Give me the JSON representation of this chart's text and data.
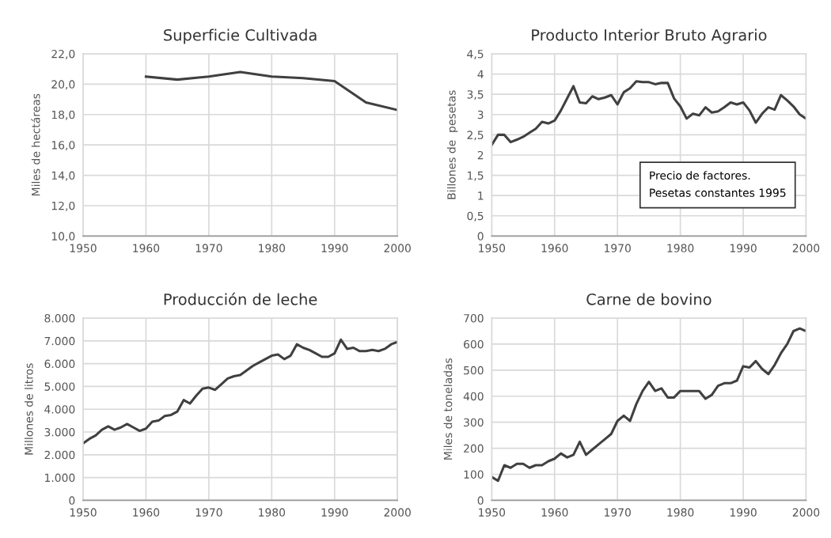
{
  "chart_data": [
    {
      "type": "line",
      "title": "Superficie Cultivada",
      "ylabel": "Miles de hectáreas",
      "x": [
        1960,
        1965,
        1970,
        1975,
        1980,
        1985,
        1990,
        1995,
        2000
      ],
      "series": [
        {
          "color": "#404040",
          "values": [
            20.5,
            20.3,
            20.5,
            20.8,
            20.5,
            20.4,
            20.2,
            18.8,
            18.3
          ]
        }
      ],
      "xlim": [
        1950,
        2000
      ],
      "xticks": [
        1950,
        1960,
        1970,
        1980,
        1990,
        2000
      ],
      "ylim": [
        10,
        22
      ],
      "yticks": [
        {
          "value": 10,
          "label": "10,0"
        },
        {
          "value": 12,
          "label": "12,0"
        },
        {
          "value": 14,
          "label": "14,0"
        },
        {
          "value": 16,
          "label": "16,0"
        },
        {
          "value": 18,
          "label": "18,0"
        },
        {
          "value": 20,
          "label": "20,0"
        },
        {
          "value": 22,
          "label": "22,0"
        }
      ],
      "grid": true
    },
    {
      "type": "line",
      "title": "Producto Interior Bruto Agrario",
      "ylabel": "Billones de  pesetas",
      "annotations": [
        "Precio de factores.\nPesetas constantes 1995"
      ],
      "x": [
        1950,
        1951,
        1952,
        1953,
        1954,
        1955,
        1956,
        1957,
        1958,
        1959,
        1960,
        1961,
        1962,
        1963,
        1964,
        1965,
        1966,
        1967,
        1968,
        1969,
        1970,
        1971,
        1972,
        1973,
        1974,
        1975,
        1976,
        1977,
        1978,
        1979,
        1980,
        1981,
        1982,
        1983,
        1984,
        1985,
        1986,
        1987,
        1988,
        1989,
        1990,
        1991,
        1992,
        1993,
        1994,
        1995,
        1996,
        1997,
        1998,
        1999,
        2000
      ],
      "series": [
        {
          "color": "#404040",
          "values": [
            2.25,
            2.5,
            2.5,
            2.32,
            2.38,
            2.45,
            2.55,
            2.65,
            2.82,
            2.78,
            2.85,
            3.1,
            3.4,
            3.7,
            3.3,
            3.28,
            3.45,
            3.38,
            3.42,
            3.48,
            3.25,
            3.55,
            3.65,
            3.82,
            3.8,
            3.8,
            3.75,
            3.78,
            3.78,
            3.4,
            3.2,
            2.9,
            3.02,
            2.98,
            3.18,
            3.05,
            3.08,
            3.18,
            3.3,
            3.25,
            3.3,
            3.1,
            2.8,
            3.02,
            3.18,
            3.12,
            3.48,
            3.35,
            3.2,
            3.0,
            2.9
          ]
        }
      ],
      "xlim": [
        1950,
        2000
      ],
      "xticks": [
        1950,
        1960,
        1970,
        1980,
        1990,
        2000
      ],
      "ylim": [
        0,
        4.5
      ],
      "yticks": [
        0,
        {
          "value": 0.5,
          "label": "0,5"
        },
        1,
        {
          "value": 1.5,
          "label": "1,5"
        },
        2,
        {
          "value": 2.5,
          "label": "2,5"
        },
        3,
        {
          "value": 3.5,
          "label": "3,5"
        },
        4,
        {
          "value": 4.5,
          "label": "4,5"
        }
      ],
      "grid": true
    },
    {
      "type": "line",
      "title": "Producción de leche",
      "ylabel": "Millones de litros",
      "x": [
        1950,
        1951,
        1952,
        1953,
        1954,
        1955,
        1956,
        1957,
        1958,
        1959,
        1960,
        1961,
        1962,
        1963,
        1964,
        1965,
        1966,
        1967,
        1968,
        1969,
        1970,
        1971,
        1972,
        1973,
        1974,
        1975,
        1976,
        1977,
        1978,
        1979,
        1980,
        1981,
        1982,
        1983,
        1984,
        1985,
        1986,
        1987,
        1988,
        1989,
        1990,
        1991,
        1992,
        1993,
        1994,
        1995,
        1996,
        1997,
        1998,
        1999,
        2000
      ],
      "series": [
        {
          "color": "#404040",
          "values": [
            2500,
            2700,
            2850,
            3100,
            3250,
            3100,
            3200,
            3350,
            3200,
            3050,
            3150,
            3450,
            3500,
            3700,
            3750,
            3900,
            4400,
            4250,
            4600,
            4900,
            4950,
            4850,
            5100,
            5350,
            5450,
            5500,
            5700,
            5900,
            6050,
            6200,
            6350,
            6400,
            6200,
            6350,
            6850,
            6700,
            6600,
            6450,
            6300,
            6300,
            6450,
            7050,
            6650,
            6700,
            6550,
            6550,
            6600,
            6550,
            6650,
            6850,
            6950
          ]
        }
      ],
      "xlim": [
        1950,
        2000
      ],
      "xticks": [
        1950,
        1960,
        1970,
        1980,
        1990,
        2000
      ],
      "ylim": [
        0,
        8000
      ],
      "yticks": [
        0,
        {
          "value": 1000,
          "label": "1.000"
        },
        {
          "value": 2000,
          "label": "2.000"
        },
        {
          "value": 3000,
          "label": "3.000"
        },
        {
          "value": 4000,
          "label": "4.000"
        },
        {
          "value": 5000,
          "label": "5.000"
        },
        {
          "value": 6000,
          "label": "6.000"
        },
        {
          "value": 7000,
          "label": "7.000"
        },
        {
          "value": 8000,
          "label": "8.000"
        }
      ],
      "grid": true
    },
    {
      "type": "line",
      "title": "Carne de bovino",
      "ylabel": "Miles de toneladas",
      "x": [
        1950,
        1951,
        1952,
        1953,
        1954,
        1955,
        1956,
        1957,
        1958,
        1959,
        1960,
        1961,
        1962,
        1963,
        1964,
        1965,
        1966,
        1967,
        1968,
        1969,
        1970,
        1971,
        1972,
        1973,
        1974,
        1975,
        1976,
        1977,
        1978,
        1979,
        1980,
        1981,
        1982,
        1983,
        1984,
        1985,
        1986,
        1987,
        1988,
        1989,
        1990,
        1991,
        1992,
        1993,
        1994,
        1995,
        1996,
        1997,
        1998,
        1999,
        2000
      ],
      "series": [
        {
          "color": "#404040",
          "values": [
            90,
            75,
            135,
            125,
            140,
            140,
            125,
            135,
            135,
            150,
            160,
            180,
            165,
            175,
            225,
            175,
            195,
            215,
            235,
            255,
            305,
            325,
            305,
            370,
            420,
            455,
            420,
            430,
            395,
            395,
            420,
            420,
            420,
            420,
            390,
            405,
            440,
            450,
            450,
            460,
            515,
            510,
            535,
            505,
            485,
            520,
            565,
            600,
            650,
            660,
            650
          ]
        }
      ],
      "xlim": [
        1950,
        2000
      ],
      "xticks": [
        1950,
        1960,
        1970,
        1980,
        1990,
        2000
      ],
      "ylim": [
        0,
        700
      ],
      "yticks": [
        0,
        100,
        200,
        300,
        400,
        500,
        600,
        700
      ],
      "grid": true
    }
  ]
}
